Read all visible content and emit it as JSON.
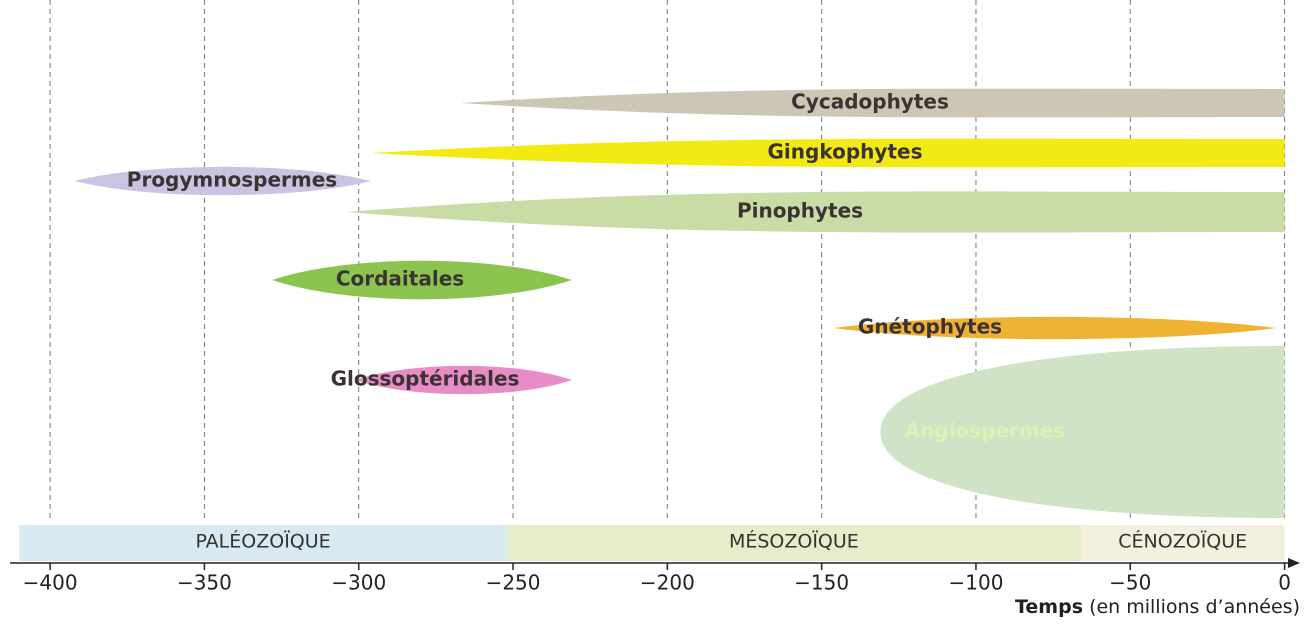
{
  "chart_data": {
    "type": "timeline",
    "x_label": "Temps",
    "x_label_note": "(en millions d’années)",
    "xlim": [
      -413,
      5
    ],
    "xticks": [
      {
        "value": -400,
        "label": "−400"
      },
      {
        "value": -350,
        "label": "−350"
      },
      {
        "value": -300,
        "label": "−300"
      },
      {
        "value": -250,
        "label": "−250"
      },
      {
        "value": -200,
        "label": "−200"
      },
      {
        "value": -150,
        "label": "−150"
      },
      {
        "value": -100,
        "label": "−100"
      },
      {
        "value": -50,
        "label": "−50"
      },
      0
    ],
    "grid": true,
    "series": [
      {
        "name": "Cycadophytes",
        "color": "#ccc6b4",
        "values": [
          -267,
          0
        ]
      },
      {
        "name": "Gingkophytes",
        "color": "#f2ea12",
        "values": [
          -296,
          0
        ]
      },
      {
        "name": "Pinophytes",
        "color": "#c9dca6",
        "values": [
          -304,
          0
        ]
      },
      {
        "name": "Progymnospermes",
        "color": "#c9c4e4",
        "values": [
          -392,
          -296
        ]
      },
      {
        "name": "Cordaitales",
        "color": "#8cc450",
        "values": [
          -328,
          -231
        ]
      },
      {
        "name": "Glossoptéridales",
        "color": "#e88cc8",
        "values": [
          -301,
          -231
        ]
      },
      {
        "name": "Gnétophytes",
        "color": "#f0b232",
        "values": [
          -146,
          -3
        ]
      },
      {
        "name": "Angiospermes",
        "color": "#cfe4c6",
        "values": [
          -131,
          0
        ]
      }
    ],
    "eras": [
      {
        "name": "PALÉOZOÏQUE",
        "color": "#d8e9f1",
        "values": [
          -410,
          -252
        ]
      },
      {
        "name": "MÉSOZOÏQUE",
        "color": "#e7edca",
        "values": [
          -252,
          -66
        ]
      },
      {
        "name": "CÉNOZOÏQUE",
        "color": "#f3f1dd",
        "values": [
          -66,
          0
        ]
      }
    ]
  }
}
